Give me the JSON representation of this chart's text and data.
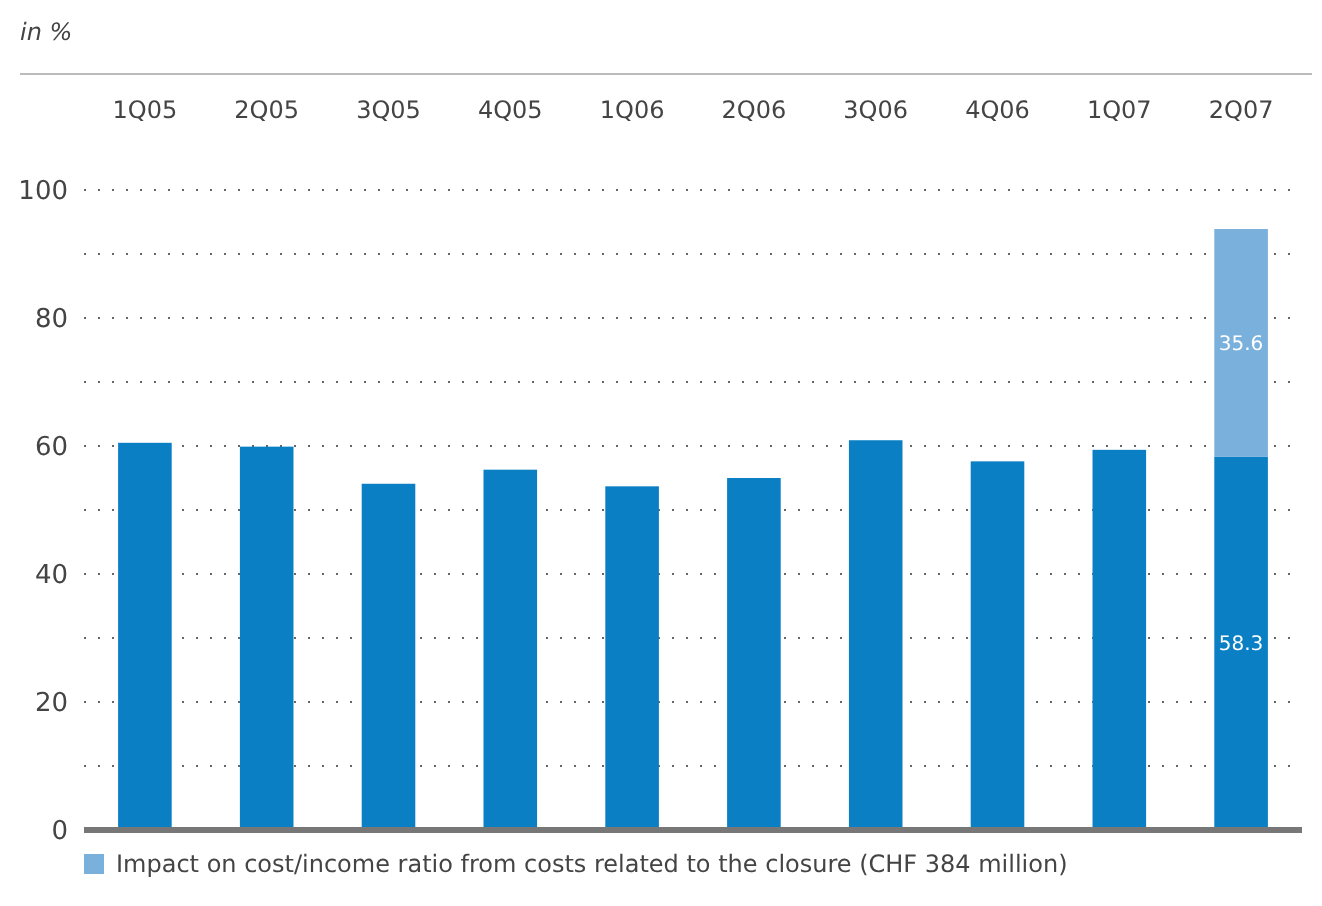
{
  "chart_data": {
    "type": "bar",
    "stacked": true,
    "ylabel": "in %",
    "categories": [
      "1Q05",
      "2Q05",
      "3Q05",
      "4Q05",
      "1Q06",
      "2Q06",
      "3Q06",
      "4Q06",
      "1Q07",
      "2Q07"
    ],
    "series": [
      {
        "color": "#0a7fc4",
        "values": [
          60.5,
          59.9,
          54.1,
          56.3,
          53.7,
          55.0,
          60.9,
          57.6,
          59.4,
          58.3
        ],
        "value_labels": [
          null,
          null,
          null,
          null,
          null,
          null,
          null,
          null,
          null,
          "58.3"
        ]
      },
      {
        "name": "Impact on cost/income ratio from costs related to the closure (CHF 384 million)",
        "color": "#7ab0dc",
        "values": [
          null,
          null,
          null,
          null,
          null,
          null,
          null,
          null,
          null,
          35.6
        ],
        "value_labels": [
          null,
          null,
          null,
          null,
          null,
          null,
          null,
          null,
          null,
          "35.6"
        ]
      }
    ],
    "ylim": [
      0,
      100
    ],
    "yticks": [
      0,
      {
        "value": 10,
        "label": null
      },
      20,
      {
        "value": 30,
        "label": null
      },
      40,
      {
        "value": 50,
        "label": null
      },
      60,
      {
        "value": 70,
        "label": null
      },
      80,
      {
        "value": 90,
        "label": null
      },
      100
    ],
    "grid": "y",
    "legend": "bottom"
  }
}
